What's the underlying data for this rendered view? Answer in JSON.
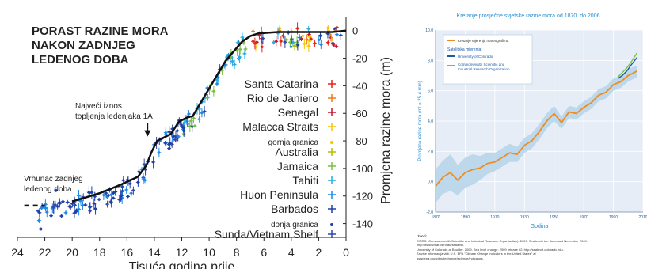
{
  "chart_data": [
    {
      "type": "scatter",
      "title_lines": [
        "PORAST RAZINE MORA",
        "NAKON ZADNJEG",
        "LEDENOG DOBA"
      ],
      "xlabel": "Tisuća godina prije",
      "ylabel": "Promjena razine mora (m)",
      "xlim": [
        24,
        0
      ],
      "ylim": [
        -150,
        5
      ],
      "x_ticks": [
        "24",
        "22",
        "20",
        "18",
        "16",
        "14",
        "12",
        "10",
        "8",
        "6",
        "4",
        "2",
        "0"
      ],
      "y_ticks": [
        "0",
        "-20",
        "-40",
        "-60",
        "-80",
        "-100",
        "-120",
        "-140"
      ],
      "grid": false,
      "legend": [
        {
          "label": "Santa Catarina",
          "color": "#e2231a"
        },
        {
          "label": "Rio de Janiero",
          "color": "#f07a1b"
        },
        {
          "label": "Senegal",
          "color": "#c8102e"
        },
        {
          "label": "Malacca Straits",
          "color": "#f5c400"
        },
        {
          "label": "gornja granica",
          "color": "#f5c400",
          "small": true
        },
        {
          "label": "Australia",
          "color": "#b5c100"
        },
        {
          "label": "Jamaica",
          "color": "#7ac143"
        },
        {
          "label": "Tahiti",
          "color": "#29abe2"
        },
        {
          "label": "Huon Peninsula",
          "color": "#1e88e5"
        },
        {
          "label": "Barbados",
          "color": "#1d3fa8"
        },
        {
          "label": "donja granica",
          "color": "#1d3fa8",
          "small": true
        },
        {
          "label": "Sunda/Vietnam Shelf",
          "color": "#3046a8"
        }
      ],
      "annotations": [
        {
          "lines": [
            "Najveći iznos",
            "topljenja ledenjaka 1A"
          ],
          "x": 14.5,
          "y": -78
        },
        {
          "lines": [
            "Vrhunac zadnjeg",
            "ledenog doba"
          ],
          "x": 22,
          "y": -122
        }
      ],
      "curve_x": [
        23.5,
        22,
        20,
        18,
        16.5,
        15.2,
        14.6,
        14.2,
        13.8,
        13.4,
        12.8,
        12.2,
        11.6,
        11.2,
        10.6,
        10,
        9.4,
        8.8,
        8.2,
        7.6,
        7,
        6.4,
        5,
        3,
        1,
        0
      ],
      "curve_y": [
        -127,
        -127,
        -124,
        -118,
        -112,
        -106,
        -98,
        -88,
        -80,
        -78,
        -75,
        -66,
        -63,
        -62,
        -52,
        -42,
        -32,
        -22,
        -15,
        -8,
        -4,
        -2,
        -1,
        -1,
        -1,
        0
      ],
      "curve_dashed_until": 20.5
    },
    {
      "type": "line",
      "title": "Kretanje prosječne svjetske razine mora od 1870. do 2006.",
      "xlabel": "Godina",
      "ylabel": "Promjena razine mora (ml = 25.4 mm)",
      "xlim": [
        1870,
        2010
      ],
      "ylim": [
        -2,
        10
      ],
      "x_ticks": [
        "1870",
        "1890",
        "1910",
        "1930",
        "1950",
        "1970",
        "1990",
        "2010"
      ],
      "y_ticks": [
        "10.0",
        "8.0",
        "6.0",
        "4.0",
        "2.0",
        "0.0",
        "-2.0"
      ],
      "grid": true,
      "legend_title": "Satelitska mjerenja:",
      "series": [
        {
          "name": "Kretanje mjerenja mareografima",
          "color": "#f08c1e",
          "band_color": "#b8d4ea",
          "x": [
            1870,
            1875,
            1880,
            1885,
            1890,
            1895,
            1900,
            1905,
            1910,
            1915,
            1920,
            1925,
            1930,
            1935,
            1940,
            1945,
            1950,
            1955,
            1960,
            1965,
            1970,
            1975,
            1980,
            1985,
            1990,
            1995,
            2000,
            2006
          ],
          "y": [
            -0.3,
            0.3,
            0.6,
            0.1,
            0.6,
            0.8,
            0.9,
            1.2,
            1.3,
            1.6,
            1.9,
            1.8,
            2.4,
            2.7,
            3.3,
            4.0,
            4.5,
            3.9,
            4.6,
            4.5,
            4.9,
            5.2,
            5.7,
            5.9,
            6.4,
            6.6,
            7.0,
            7.3
          ],
          "band_lower": [
            -1.4,
            -0.8,
            -0.6,
            -0.9,
            -0.4,
            -0.2,
            0.1,
            0.5,
            0.7,
            1.0,
            1.3,
            1.3,
            1.9,
            2.2,
            2.8,
            3.5,
            4.0,
            3.5,
            4.2,
            4.1,
            4.5,
            4.8,
            5.3,
            5.5,
            6.0,
            6.2,
            6.6,
            6.9
          ],
          "band_upper": [
            0.8,
            1.4,
            1.8,
            1.1,
            1.6,
            1.8,
            1.7,
            1.9,
            1.9,
            2.2,
            2.5,
            2.3,
            2.9,
            3.2,
            3.8,
            4.5,
            5.0,
            4.3,
            5.0,
            4.9,
            5.3,
            5.6,
            6.1,
            6.3,
            6.8,
            7.0,
            7.4,
            7.7
          ]
        },
        {
          "name": "University of Colorado",
          "color": "#1b5aa6",
          "x": [
            1993,
            1996,
            1999,
            2002,
            2006
          ],
          "y": [
            6.8,
            7.0,
            7.3,
            7.7,
            8.2
          ]
        },
        {
          "name": "Commonwealth Scientific and Industrial Research Organization",
          "color": "#7ac143",
          "x": [
            1993,
            1996,
            1999,
            2002,
            2006
          ],
          "y": [
            6.9,
            7.2,
            7.5,
            7.9,
            8.5
          ]
        }
      ]
    }
  ],
  "sources": {
    "heading": "Izvori:",
    "lines": [
      "CSIRO (Commonwealth Scientific and Industrial Research Organisation). 2009. Sea level rise. Accessed November 2009.",
      "http://www.cmar.csiro.au/sealevel.",
      "University of Colorado at Boulder. 2009. Sea level change: 2009 release #2. http://sealevel.colorado.edu.",
      "Za više informacija vidi: U.S. EPA \"Climate Change Indicators in the United States\" at",
      "www.epa.gov/climatechange/science/indicators."
    ]
  }
}
